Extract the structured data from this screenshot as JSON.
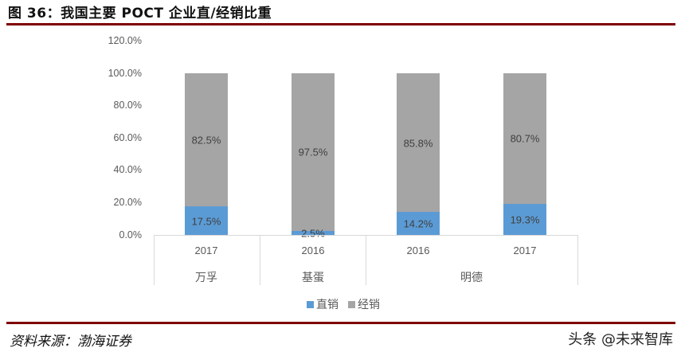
{
  "figure": {
    "title": "图 36：我国主要 POCT 企业直/经销比重",
    "source": "资料来源：渤海证券",
    "watermark": "头条 @未来智库"
  },
  "colors": {
    "rule": "#7f0000",
    "direct": "#5b9bd5",
    "distribution": "#a5a5a5"
  },
  "legend": [
    {
      "label": "直销",
      "color": "#5b9bd5"
    },
    {
      "label": "经销",
      "color": "#a5a5a5"
    }
  ],
  "yticks": [
    "120.0%",
    "100.0%",
    "80.0%",
    "60.0%",
    "40.0%",
    "20.0%",
    "0.0%"
  ],
  "bars": [
    {
      "year": "2017",
      "company": "万孚",
      "direct": 17.5,
      "distribution": 82.5,
      "direct_label": "17.5%",
      "distribution_label": "82.5%"
    },
    {
      "year": "2016",
      "company": "基蛋",
      "direct": 2.5,
      "distribution": 97.5,
      "direct_label": "2.5%",
      "distribution_label": "97.5%"
    },
    {
      "year": "2016",
      "company": "明德",
      "direct": 14.2,
      "distribution": 85.8,
      "direct_label": "14.2%",
      "distribution_label": "85.8%"
    },
    {
      "year": "2017",
      "company": "明德",
      "direct": 19.3,
      "distribution": 80.7,
      "direct_label": "19.3%",
      "distribution_label": "80.7%"
    }
  ],
  "groups": [
    {
      "label": "万孚"
    },
    {
      "label": "基蛋"
    },
    {
      "label": "明德"
    }
  ],
  "chart_data": {
    "type": "bar",
    "stacked": true,
    "title": "图 36：我国主要 POCT 企业直/经销比重",
    "categories": [
      "万孚 2017",
      "基蛋 2016",
      "明德 2016",
      "明德 2017"
    ],
    "category_levels": {
      "year": [
        "2017",
        "2016",
        "2016",
        "2017"
      ],
      "company": [
        "万孚",
        "基蛋",
        "明德",
        "明德"
      ]
    },
    "series": [
      {
        "name": "直销",
        "values": [
          17.5,
          2.5,
          14.2,
          19.3
        ],
        "color": "#5b9bd5"
      },
      {
        "name": "经销",
        "values": [
          82.5,
          97.5,
          85.8,
          80.7
        ],
        "color": "#a5a5a5"
      }
    ],
    "xlabel": "",
    "ylabel": "",
    "ylim": [
      0,
      120
    ],
    "yticks": [
      0,
      20,
      40,
      60,
      80,
      100,
      120
    ],
    "ytick_format": "0.0%",
    "grid": false,
    "legend_position": "bottom",
    "source": "资料来源：渤海证券"
  }
}
